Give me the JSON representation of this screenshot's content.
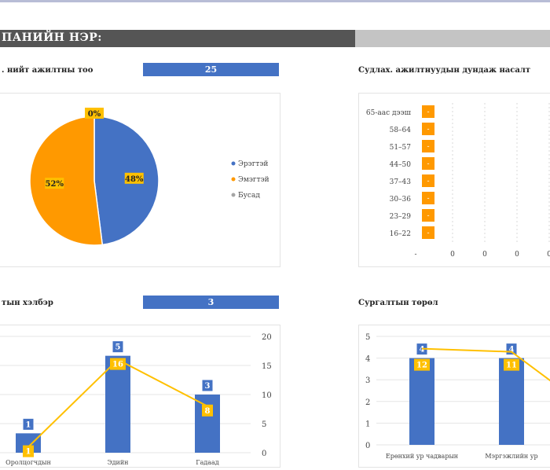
{
  "header": {
    "title": "ПАНИЙН НЭР:"
  },
  "sections": {
    "total": {
      "label": ". нийт ажилтны тоо",
      "value": "25"
    },
    "age": {
      "label": "Судлах. ажилтнуудын дундаж насалт"
    },
    "form": {
      "label": "тын хэлбэр",
      "value": "3"
    },
    "training": {
      "label": "Сургалтын төрөл"
    }
  },
  "colors": {
    "blue": "#4472c4",
    "orange": "#ff9900",
    "gold": "#ffc000",
    "grey": "#a5a5a5"
  },
  "chart_data": [
    {
      "id": "gender-pie",
      "type": "pie",
      "labels": [
        "Эрэгтэй",
        "Эмэгтэй",
        "Бусад"
      ],
      "values": [
        48,
        52,
        0
      ],
      "data_labels": [
        "48%",
        "52%",
        "0%"
      ],
      "legend": "right"
    },
    {
      "id": "age-bar",
      "type": "bar",
      "orientation": "horizontal",
      "categories": [
        "65-аас дээш",
        "58–64",
        "51–57",
        "44–50",
        "37–43",
        "30–36",
        "23–29",
        "16–22"
      ],
      "values": [
        0,
        0,
        0,
        0,
        0,
        0,
        0,
        0
      ],
      "data_labels": [
        "-",
        "-",
        "-",
        "-",
        "-",
        "-",
        "-",
        "-"
      ],
      "x_tick_labels": [
        "-",
        "0",
        "0",
        "0",
        "0"
      ]
    },
    {
      "id": "form-combo",
      "type": "bar",
      "categories": [
        "Оролцогчдын",
        "Эдийн",
        "Гадаад"
      ],
      "series": [
        {
          "name": "bars",
          "values": [
            1,
            5,
            3
          ],
          "axis": "left"
        },
        {
          "name": "line",
          "values": [
            1,
            16,
            8
          ],
          "axis": "right"
        }
      ],
      "right_ticks": [
        "20",
        "15",
        "10",
        "5",
        "0"
      ]
    },
    {
      "id": "training-combo",
      "type": "bar",
      "categories": [
        "Ерөнхий ур чадварын",
        "Мэргэжлийн ур"
      ],
      "series": [
        {
          "name": "bars",
          "values": [
            4,
            4
          ],
          "axis": "left"
        },
        {
          "name": "line",
          "values": [
            12,
            11
          ],
          "axis": "right"
        }
      ],
      "left_ticks": [
        "5",
        "4",
        "3",
        "2",
        "1",
        "0"
      ]
    }
  ]
}
